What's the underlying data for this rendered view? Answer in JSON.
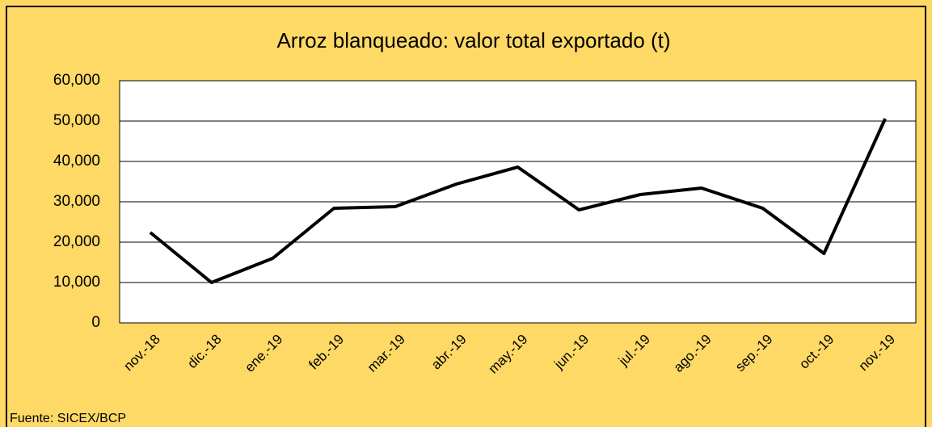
{
  "chart_data": {
    "type": "line",
    "title": "Arroz blanqueado: valor total exportado (t)",
    "categories": [
      "nov.-18",
      "dic.-18",
      "ene.-19",
      "feb.-19",
      "mar.-19",
      "abr.-19",
      "may.-19",
      "jun.-19",
      "jul.-19",
      "ago.-19",
      "sep.-19",
      "oct.-19",
      "nov.-19"
    ],
    "series": [
      {
        "name": "Arroz blanqueado",
        "color": "#000000",
        "values": [
          22400,
          10000,
          16000,
          28400,
          28800,
          34400,
          38600,
          28000,
          31800,
          33400,
          28400,
          17200,
          50600
        ]
      }
    ],
    "ylim": [
      0,
      60000
    ],
    "yticks": [
      0,
      {
        "value": 10000,
        "label": "10,000"
      },
      {
        "value": 20000,
        "label": "20,000"
      },
      {
        "value": 30000,
        "label": "30,000"
      },
      {
        "value": 40000,
        "label": "40,000"
      },
      {
        "value": 50000,
        "label": "50,000"
      },
      {
        "value": 60000,
        "label": "60,000"
      }
    ],
    "grid": true,
    "source": "Fuente: SICEX/BCP"
  }
}
